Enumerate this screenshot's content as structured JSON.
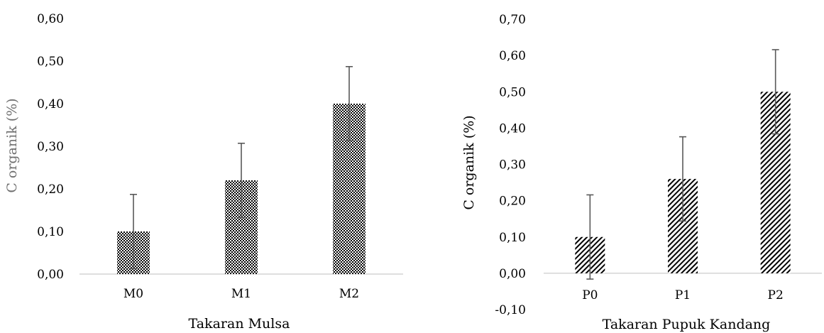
{
  "chart_data": [
    {
      "type": "bar",
      "categories": [
        "M0",
        "M1",
        "M2"
      ],
      "values": [
        0.1,
        0.22,
        0.4
      ],
      "errors": [
        0.087,
        0.087,
        0.087
      ],
      "xlabel": "Takaran Mulsa",
      "ylabel": "C organik (%)",
      "ylim": [
        0,
        0.6
      ],
      "yticks": [
        "0,00",
        "0,10",
        "0,20",
        "0,30",
        "0,40",
        "0,50",
        "0,60"
      ],
      "pattern": "checker",
      "grid": false
    },
    {
      "type": "bar",
      "categories": [
        "P0",
        "P1",
        "P2"
      ],
      "values": [
        0.1,
        0.26,
        0.5
      ],
      "errors": [
        0.116,
        0.116,
        0.116
      ],
      "xlabel": "Takaran Pupuk Kandang",
      "ylabel": "C organik (%)",
      "ylim": [
        -0.1,
        0.7
      ],
      "yticks": [
        "-0,10",
        "0,00",
        "0,10",
        "0,20",
        "0,30",
        "0,40",
        "0,50",
        "0,60",
        "0,70"
      ],
      "pattern": "diagonal",
      "grid": false
    }
  ]
}
